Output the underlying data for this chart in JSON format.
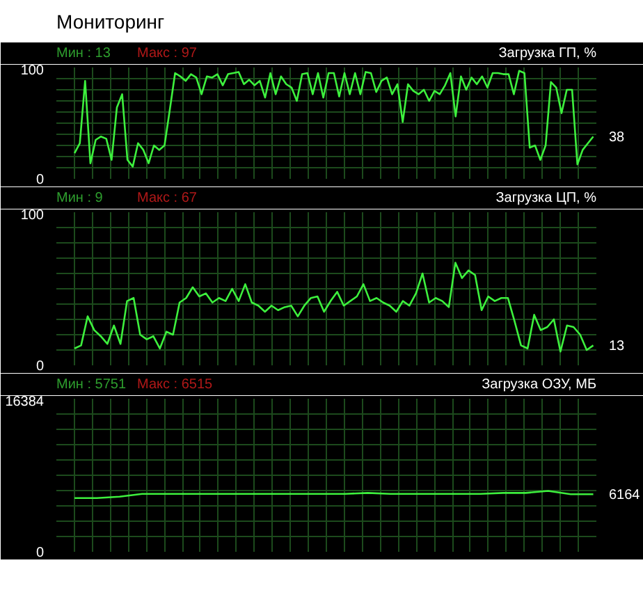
{
  "chart_data": [
    {
      "type": "line",
      "title": "Мониторинг",
      "subtitle": "Загрузка ГП, %",
      "ylim": [
        0,
        100
      ],
      "grid": true,
      "tick_labels": "y",
      "categories": [
        null,
        null,
        null,
        null,
        null,
        null,
        null,
        null,
        null,
        null,
        null,
        null,
        null,
        null,
        null,
        null,
        null,
        null,
        null,
        null,
        null,
        null,
        null,
        null,
        null,
        null,
        null,
        null,
        null,
        null,
        null,
        null,
        null,
        null,
        null,
        null,
        null,
        null,
        null,
        null,
        null,
        null,
        null,
        null,
        null,
        null,
        null,
        null,
        null,
        null,
        null,
        null,
        null,
        null,
        null,
        null,
        null,
        null,
        null,
        null,
        null,
        null,
        null,
        null,
        null,
        null,
        null,
        null,
        null,
        null,
        null,
        null,
        null,
        null,
        null,
        null,
        null,
        null,
        null,
        null,
        null,
        null,
        null,
        null,
        null,
        null,
        null,
        null,
        null,
        null,
        null,
        null,
        null,
        null,
        null,
        null,
        null,
        null,
        null
      ],
      "yticks": [
        0,
        {
          "value": 10,
          "label": null
        },
        {
          "value": 20,
          "label": null
        },
        {
          "value": 30,
          "label": null
        },
        {
          "value": 40,
          "label": null
        },
        {
          "value": 50,
          "label": null
        },
        {
          "value": 60,
          "label": null
        },
        {
          "value": 70,
          "label": null
        },
        {
          "value": 80,
          "label": null
        },
        {
          "value": 90,
          "label": null
        },
        100
      ],
      "annotations": [
        "Мин : 13",
        "Макс : 97",
        "38"
      ],
      "series": [
        {
          "color": "#3df03d",
          "values": [
            23,
            32,
            88,
            14,
            35,
            38,
            36,
            17,
            64,
            76,
            17,
            11,
            32,
            26,
            14,
            30,
            26,
            30,
            62,
            95,
            92,
            88,
            94,
            91,
            76,
            92,
            91,
            94,
            84,
            94,
            95,
            96,
            85,
            89,
            84,
            88,
            73,
            95,
            76,
            92,
            85,
            82,
            70,
            94,
            95,
            76,
            95,
            73,
            95,
            95,
            74,
            95,
            76,
            95,
            76,
            96,
            95,
            78,
            88,
            91,
            76,
            85,
            51,
            85,
            79,
            76,
            80,
            70,
            79,
            76,
            84,
            95,
            56,
            92,
            80,
            91,
            85,
            92,
            82,
            95,
            95,
            94,
            94,
            76,
            97,
            95,
            28,
            30,
            17,
            30,
            87,
            82,
            59,
            80,
            80,
            13,
            26,
            32,
            38
          ]
        }
      ]
    },
    {
      "type": "line",
      "subtitle": "Загрузка ЦП, %",
      "ylim": [
        0,
        100
      ],
      "grid": true,
      "tick_labels": "y",
      "categories": [
        null,
        null,
        null,
        null,
        null,
        null,
        null,
        null,
        null,
        null,
        null,
        null,
        null,
        null,
        null,
        null,
        null,
        null,
        null,
        null,
        null,
        null,
        null,
        null,
        null,
        null,
        null,
        null,
        null,
        null,
        null,
        null,
        null,
        null,
        null,
        null,
        null,
        null,
        null,
        null,
        null,
        null,
        null,
        null,
        null,
        null,
        null,
        null,
        null,
        null,
        null,
        null,
        null,
        null,
        null,
        null,
        null,
        null,
        null,
        null,
        null,
        null,
        null,
        null,
        null,
        null,
        null,
        null,
        null,
        null,
        null,
        null,
        null,
        null,
        null,
        null,
        null,
        null,
        null,
        null
      ],
      "yticks": [
        0,
        {
          "value": 10,
          "label": null
        },
        {
          "value": 20,
          "label": null
        },
        {
          "value": 30,
          "label": null
        },
        {
          "value": 40,
          "label": null
        },
        {
          "value": 50,
          "label": null
        },
        {
          "value": 60,
          "label": null
        },
        {
          "value": 70,
          "label": null
        },
        {
          "value": 80,
          "label": null
        },
        {
          "value": 90,
          "label": null
        },
        100
      ],
      "annotations": [
        "Мин : 9",
        "Макс : 67",
        "13"
      ],
      "series": [
        {
          "color": "#3df03d",
          "values": [
            11,
            13,
            32,
            23,
            19,
            14,
            26,
            14,
            42,
            44,
            20,
            17,
            19,
            11,
            22,
            20,
            41,
            44,
            51,
            45,
            47,
            41,
            44,
            42,
            50,
            42,
            53,
            41,
            39,
            35,
            39,
            36,
            38,
            39,
            32,
            39,
            44,
            45,
            35,
            42,
            48,
            39,
            42,
            45,
            53,
            42,
            44,
            41,
            39,
            35,
            42,
            39,
            47,
            60,
            41,
            44,
            42,
            38,
            67,
            57,
            62,
            59,
            36,
            45,
            42,
            44,
            44,
            29,
            13,
            11,
            33,
            23,
            25,
            30,
            9,
            26,
            25,
            20,
            10,
            13
          ]
        }
      ]
    },
    {
      "type": "line",
      "subtitle": "Загрузка ОЗУ, МБ",
      "ylim": [
        0,
        16384
      ],
      "grid": true,
      "tick_labels": "y",
      "categories": [
        null,
        null,
        null,
        null,
        null,
        null,
        null,
        null,
        null,
        null,
        null,
        null,
        null,
        null,
        null,
        null,
        null,
        null,
        null,
        null,
        null,
        null,
        null,
        null
      ],
      "yticks": [
        0,
        {
          "value": 1638.4,
          "label": null
        },
        {
          "value": 3276.8,
          "label": null
        },
        {
          "value": 4915.2,
          "label": null
        },
        {
          "value": 6553.6,
          "label": null
        },
        {
          "value": 8192,
          "label": null
        },
        {
          "value": 9830.4,
          "label": null
        },
        {
          "value": 11468.8,
          "label": null
        },
        {
          "value": 13107.2,
          "label": null
        },
        {
          "value": 14745.6,
          "label": null
        },
        16384
      ],
      "annotations": [
        "Мин : 5751",
        "Макс : 6515",
        "6164"
      ],
      "series": [
        {
          "color": "#3df03d",
          "values": [
            5751,
            5751,
            5900,
            6200,
            6200,
            6200,
            6200,
            6200,
            6200,
            6200,
            6200,
            6200,
            6200,
            6300,
            6200,
            6200,
            6200,
            6200,
            6200,
            6300,
            6300,
            6515,
            6164,
            6164
          ]
        }
      ]
    }
  ]
}
